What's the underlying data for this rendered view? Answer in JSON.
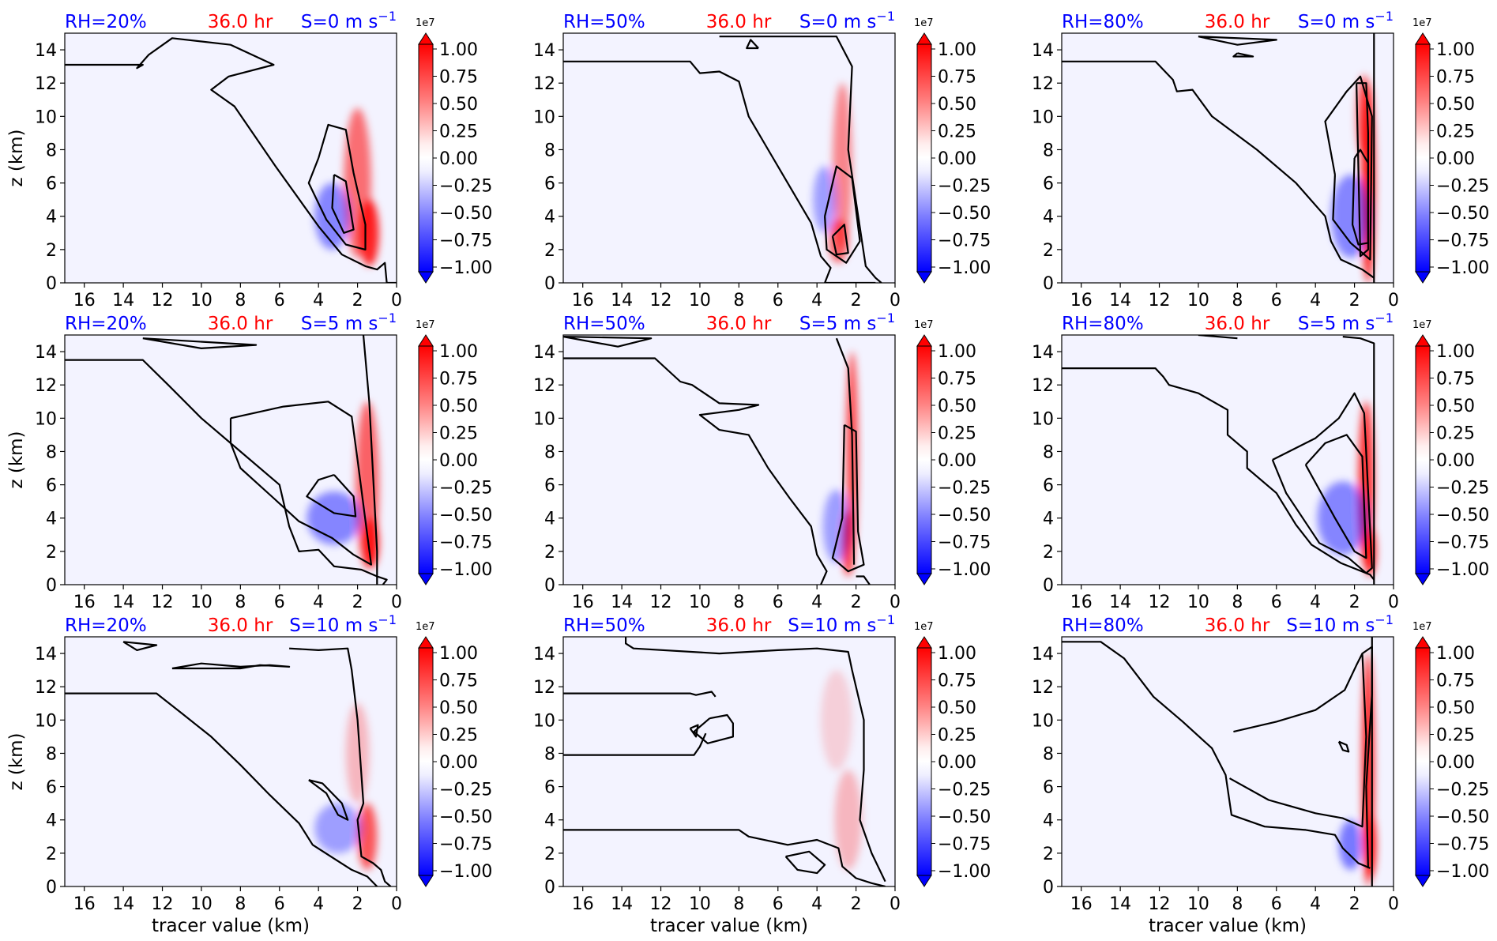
{
  "figure": {
    "ylabel": "z (km)",
    "xlabel": "tracer value (km)",
    "colorbar_multiplier": "1e7",
    "colorbar_ticks": [
      "1.00",
      "0.75",
      "0.50",
      "0.25",
      "0.00",
      "−0.25",
      "−0.50",
      "−0.75",
      "−1.00"
    ],
    "x_tick_labels": [
      "16",
      "14",
      "12",
      "10",
      "8",
      "6",
      "4",
      "2",
      "0"
    ],
    "y_tick_labels": [
      "0",
      "2",
      "4",
      "6",
      "8",
      "10",
      "12",
      "14"
    ],
    "colors": {
      "rh_label": "#0000ff",
      "time_label": "#ff0000",
      "shear_label": "#0000ff",
      "positive": "#ff0000",
      "negative": "#0000ff",
      "contour": "#000000"
    }
  },
  "chart_data": [
    {
      "type": "heatmap",
      "row": 0,
      "col": 0,
      "rh_label": "RH=20%",
      "time_label": "36.0 hr",
      "shear_label": "S=0 m s",
      "shear_exp": "−1",
      "xlim": [
        17,
        0
      ],
      "ylim": [
        0,
        15
      ],
      "clim": [
        -1.0,
        1.0
      ],
      "colormap": "bwr"
    },
    {
      "type": "heatmap",
      "row": 0,
      "col": 1,
      "rh_label": "RH=50%",
      "time_label": "36.0 hr",
      "shear_label": "S=0 m s",
      "shear_exp": "−1",
      "xlim": [
        17,
        0
      ],
      "ylim": [
        0,
        15
      ],
      "clim": [
        -1.0,
        1.0
      ],
      "colormap": "bwr"
    },
    {
      "type": "heatmap",
      "row": 0,
      "col": 2,
      "rh_label": "RH=80%",
      "time_label": "36.0 hr",
      "shear_label": "S=0 m s",
      "shear_exp": "−1",
      "xlim": [
        17,
        0
      ],
      "ylim": [
        0,
        15
      ],
      "clim": [
        -1.0,
        1.0
      ],
      "colormap": "bwr"
    },
    {
      "type": "heatmap",
      "row": 1,
      "col": 0,
      "rh_label": "RH=20%",
      "time_label": "36.0 hr",
      "shear_label": "S=5 m s",
      "shear_exp": "−1",
      "xlim": [
        17,
        0
      ],
      "ylim": [
        0,
        15
      ],
      "clim": [
        -1.0,
        1.0
      ],
      "colormap": "bwr"
    },
    {
      "type": "heatmap",
      "row": 1,
      "col": 1,
      "rh_label": "RH=50%",
      "time_label": "36.0 hr",
      "shear_label": "S=5 m s",
      "shear_exp": "−1",
      "xlim": [
        17,
        0
      ],
      "ylim": [
        0,
        15
      ],
      "clim": [
        -1.0,
        1.0
      ],
      "colormap": "bwr"
    },
    {
      "type": "heatmap",
      "row": 1,
      "col": 2,
      "rh_label": "RH=80%",
      "time_label": "36.0 hr",
      "shear_label": "S=5 m s",
      "shear_exp": "−1",
      "xlim": [
        17,
        0
      ],
      "ylim": [
        0,
        15
      ],
      "clim": [
        -1.0,
        1.0
      ],
      "colormap": "bwr"
    },
    {
      "type": "heatmap",
      "row": 2,
      "col": 0,
      "rh_label": "RH=20%",
      "time_label": "36.0 hr",
      "shear_label": "S=10 m s",
      "shear_exp": "−1",
      "xlim": [
        17,
        0
      ],
      "ylim": [
        0,
        15
      ],
      "clim": [
        -1.0,
        1.0
      ],
      "colormap": "bwr"
    },
    {
      "type": "heatmap",
      "row": 2,
      "col": 1,
      "rh_label": "RH=50%",
      "time_label": "36.0 hr",
      "shear_label": "S=10 m s",
      "shear_exp": "−1",
      "xlim": [
        17,
        0
      ],
      "ylim": [
        0,
        15
      ],
      "clim": [
        -1.0,
        1.0
      ],
      "colormap": "bwr"
    },
    {
      "type": "heatmap",
      "row": 2,
      "col": 2,
      "rh_label": "RH=80%",
      "time_label": "36.0 hr",
      "shear_label": "S=10 m s",
      "shear_exp": "−1",
      "xlim": [
        17,
        0
      ],
      "ylim": [
        0,
        15
      ],
      "clim": [
        -1.0,
        1.0
      ],
      "colormap": "bwr"
    }
  ]
}
